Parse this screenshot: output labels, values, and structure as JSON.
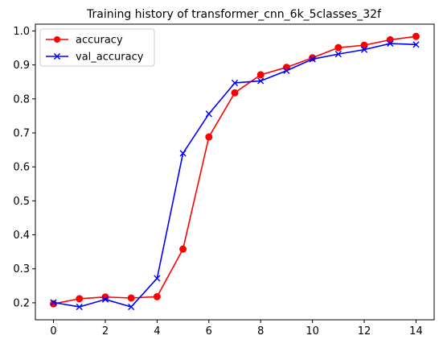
{
  "chart_data": {
    "type": "line",
    "title": "Training history of transformer_cnn_6k_5classes_32f",
    "xlabel": "",
    "ylabel": "",
    "x": [
      0,
      1,
      2,
      3,
      4,
      5,
      6,
      7,
      8,
      9,
      10,
      11,
      12,
      13,
      14
    ],
    "xlim": [
      -0.7,
      14.7
    ],
    "ylim": [
      0.15,
      1.02
    ],
    "xticks": [
      0,
      2,
      4,
      6,
      8,
      10,
      12,
      14
    ],
    "yticks": [
      0.2,
      0.3,
      0.4,
      0.5,
      0.6,
      0.7,
      0.8,
      0.9,
      1.0
    ],
    "xtick_labels": [
      "0",
      "2",
      "4",
      "6",
      "8",
      "10",
      "12",
      "14"
    ],
    "ytick_labels": [
      "0.2",
      "0.3",
      "0.4",
      "0.5",
      "0.6",
      "0.7",
      "0.8",
      "0.9",
      "1.0"
    ],
    "grid": false,
    "legend_position": "top-left",
    "series": [
      {
        "name": "accuracy",
        "color": "#ff0000",
        "marker": "circle",
        "values": [
          0.197,
          0.212,
          0.217,
          0.214,
          0.218,
          0.358,
          0.688,
          0.818,
          0.871,
          0.893,
          0.921,
          0.951,
          0.958,
          0.974,
          0.984
        ]
      },
      {
        "name": "val_accuracy",
        "color": "#0000ff",
        "marker": "x",
        "values": [
          0.201,
          0.188,
          0.21,
          0.188,
          0.272,
          0.64,
          0.756,
          0.847,
          0.853,
          0.883,
          0.917,
          0.932,
          0.945,
          0.963,
          0.96
        ]
      }
    ]
  }
}
